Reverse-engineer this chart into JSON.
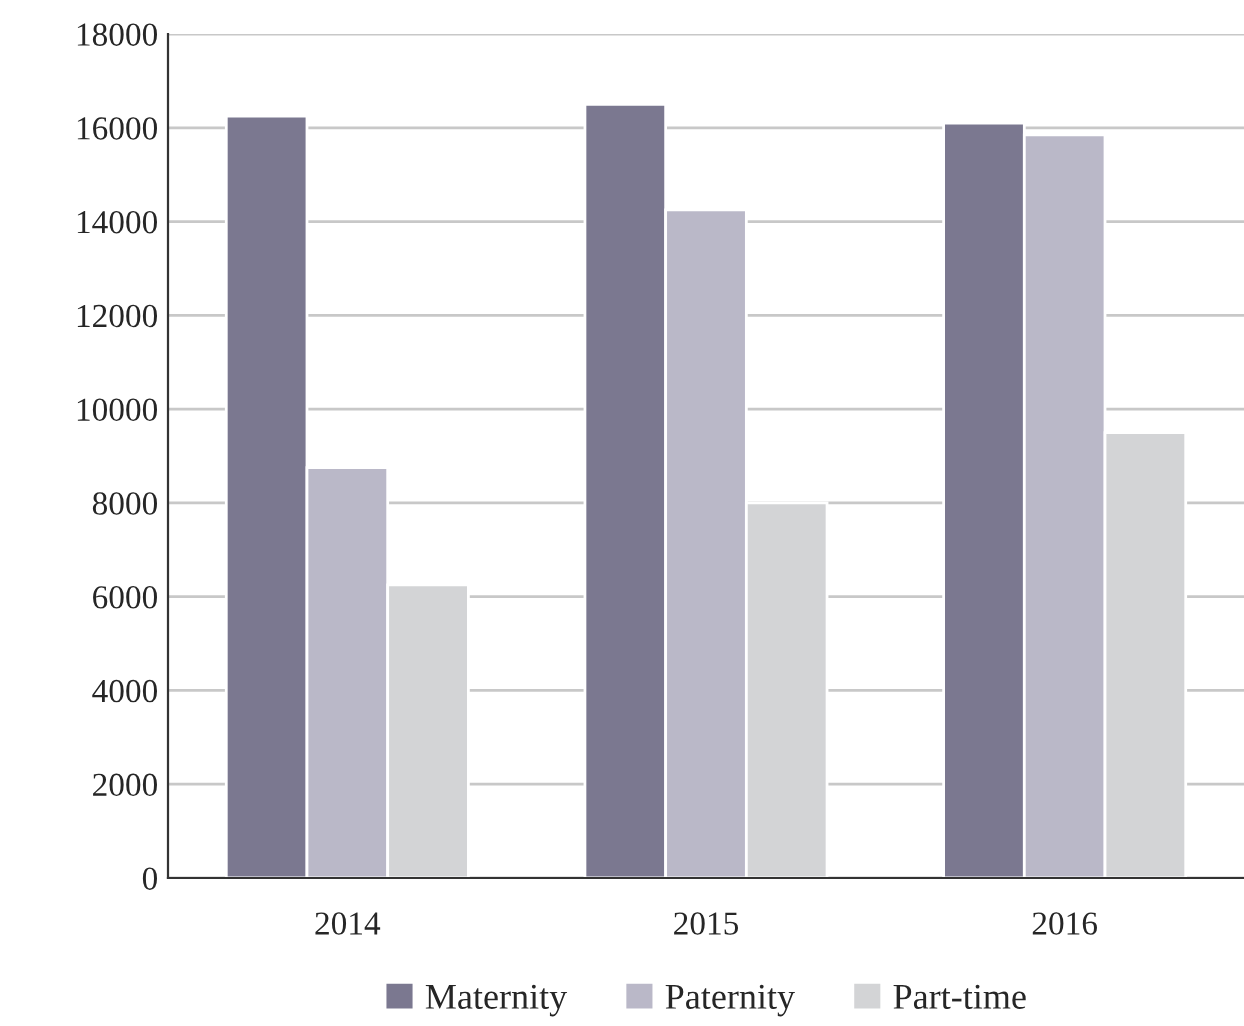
{
  "chart_data": {
    "type": "bar",
    "categories": [
      "2014",
      "2015",
      "2016"
    ],
    "series": [
      {
        "name": "Maternity",
        "color": "#7b7890",
        "values": [
          16250,
          16500,
          16100
        ]
      },
      {
        "name": "Paternity",
        "color": "#bab8c8",
        "values": [
          8750,
          14250,
          15850
        ]
      },
      {
        "name": "Part-time",
        "color": "#d3d4d6",
        "values": [
          6250,
          8000,
          9500
        ]
      }
    ],
    "ylim": [
      0,
      18000
    ],
    "yticks": [
      0,
      2000,
      4000,
      6000,
      8000,
      10000,
      12000,
      14000,
      16000,
      18000
    ],
    "grid": "y",
    "legend": "bottom"
  }
}
